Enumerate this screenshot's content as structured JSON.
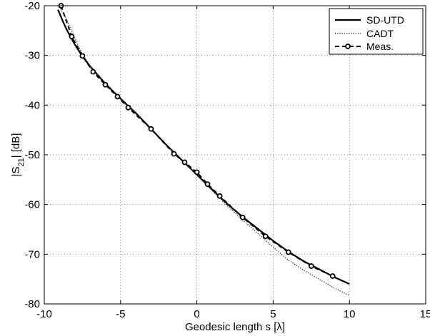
{
  "chart_data": {
    "type": "line",
    "title": "",
    "xlabel": "Geodesic length s   [λ]",
    "ylabel_main": "|S",
    "ylabel_sub": "21",
    "ylabel_rest": "|  [dB]",
    "xlim": [
      -10,
      15
    ],
    "ylim": [
      -80,
      -20
    ],
    "xticks": [
      -10,
      -5,
      0,
      5,
      10,
      15
    ],
    "yticks": [
      -80,
      -70,
      -60,
      -50,
      -40,
      -30,
      -20
    ],
    "xtick_labels": [
      "-10",
      "-5",
      "0",
      "5",
      "10",
      "15"
    ],
    "ytick_labels": [
      "-80",
      "-70",
      "-60",
      "-50",
      "-40",
      "-30",
      "-20"
    ],
    "grid": true,
    "legend_position": "top-right",
    "series": [
      {
        "name": "SD-UTD",
        "style": "solid",
        "color": "#000000",
        "x": [
          -9.1,
          -8.8,
          -8.5,
          -8.0,
          -7.5,
          -7.0,
          -6.0,
          -5.0,
          -4.5,
          -4.0,
          -3.0,
          -2.0,
          -1.0,
          0.0,
          1.0,
          2.0,
          3.0,
          4.0,
          5.0,
          6.0,
          7.0,
          8.0,
          9.0,
          10.0
        ],
        "y": [
          -20.8,
          -23.0,
          -25.0,
          -27.8,
          -30.2,
          -32.2,
          -35.7,
          -38.7,
          -40.2,
          -41.6,
          -44.8,
          -48.0,
          -51.0,
          -54.0,
          -57.0,
          -59.9,
          -62.5,
          -64.9,
          -67.3,
          -69.5,
          -71.4,
          -73.0,
          -74.6,
          -76.0
        ]
      },
      {
        "name": "CADT",
        "style": "dotted",
        "color": "#333333",
        "x": [
          -9.0,
          -8.5,
          -8.0,
          -7.5,
          -7.0,
          -6.0,
          -5.0,
          -4.5,
          -4.0,
          -3.0,
          -2.0,
          -1.0,
          0.0,
          1.0,
          2.0,
          3.0,
          4.0,
          5.0,
          6.0,
          7.0,
          8.0,
          9.0,
          10.0
        ],
        "y": [
          -20.2,
          -23.0,
          -26.5,
          -29.8,
          -32.0,
          -35.5,
          -38.6,
          -40.0,
          -41.5,
          -44.7,
          -48.0,
          -51.0,
          -54.0,
          -57.2,
          -60.3,
          -63.1,
          -65.8,
          -68.6,
          -71.2,
          -73.2,
          -75.0,
          -76.8,
          -78.3
        ]
      },
      {
        "name": "Meas.",
        "style": "dashed-markers",
        "color": "#000000",
        "x": [
          -8.9,
          -8.2,
          -7.5,
          -6.8,
          -6.0,
          -5.2,
          -4.5,
          -3.0,
          -1.5,
          -0.8,
          0.0,
          0.7,
          1.5,
          3.0,
          4.5,
          6.0,
          7.5,
          8.9
        ],
        "y": [
          -20.0,
          -26.2,
          -30.1,
          -33.3,
          -35.9,
          -38.3,
          -40.5,
          -44.8,
          -49.8,
          -51.5,
          -53.5,
          -55.9,
          -58.3,
          -62.6,
          -66.4,
          -69.6,
          -72.4,
          -74.4
        ]
      }
    ]
  }
}
